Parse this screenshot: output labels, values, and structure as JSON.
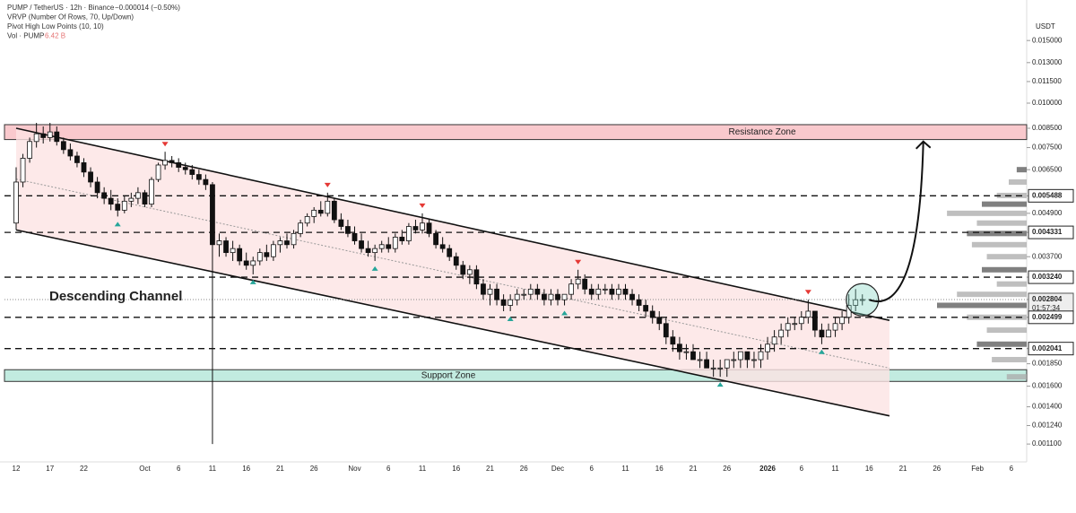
{
  "chart_data": {
    "type": "candlestick",
    "header": [
      "PUMP / TetherUS · 12h · Binance",
      "VRVP (Number Of Rows, 70, Up/Down)",
      "Pivot High Low Points (10, 10)",
      "Vol · PUMP"
    ],
    "change": "−0.000014 (−0.50%)",
    "volume_total": "6.42 B",
    "y_axis_unit": "USDT",
    "annotation": "Descending Channel",
    "log_scale": true,
    "ylim": [
      0.00098,
      0.0195
    ],
    "yticks": [
      {
        "value": 0.015,
        "label": "0.015000"
      },
      {
        "value": 0.013,
        "label": "0.013000"
      },
      {
        "value": 0.0115,
        "label": "0.011500"
      },
      {
        "value": 0.01,
        "label": "0.010000"
      },
      {
        "value": 0.0085,
        "label": "0.008500"
      },
      {
        "value": 0.0075,
        "label": "0.007500"
      },
      {
        "value": 0.0065,
        "label": "0.006500"
      },
      {
        "value": 0.005488,
        "label": "0.005488",
        "level": true
      },
      {
        "value": 0.0049,
        "label": "0.004900"
      },
      {
        "value": 0.004331,
        "label": "0.004331",
        "level": true
      },
      {
        "value": 0.0037,
        "label": "0.003700"
      },
      {
        "value": 0.00324,
        "label": "0.003240",
        "level": true
      },
      {
        "value": 0.002804,
        "label": "0.002804",
        "current": true
      },
      {
        "value": 0.002499,
        "label": "0.002499",
        "level": true
      },
      {
        "value": 0.002041,
        "label": "0.002041",
        "level": true
      },
      {
        "value": 0.00185,
        "label": "0.001850"
      },
      {
        "value": 0.0016,
        "label": "0.001600"
      },
      {
        "value": 0.0014,
        "label": "0.001400"
      },
      {
        "value": 0.00124,
        "label": "0.001240"
      },
      {
        "value": 0.0011,
        "label": "0.001100"
      }
    ],
    "countdown": "01:57:34",
    "categories": [
      "12",
      null,
      null,
      null,
      null,
      "17",
      null,
      null,
      null,
      null,
      "22",
      null,
      null,
      null,
      null,
      null,
      null,
      null,
      null,
      "Oct",
      null,
      null,
      null,
      null,
      "6",
      null,
      null,
      null,
      null,
      "11",
      null,
      null,
      null,
      null,
      "16",
      null,
      null,
      null,
      null,
      "21",
      null,
      null,
      null,
      null,
      "26",
      null,
      null,
      null,
      null,
      null,
      "Nov",
      null,
      null,
      null,
      null,
      "6",
      null,
      null,
      null,
      null,
      "11",
      null,
      null,
      null,
      null,
      "16",
      null,
      null,
      null,
      null,
      "21",
      null,
      null,
      null,
      null,
      "26",
      null,
      null,
      null,
      null,
      "Dec",
      null,
      null,
      null,
      null,
      "6",
      null,
      null,
      null,
      null,
      "11",
      null,
      null,
      null,
      null,
      "16",
      null,
      null,
      null,
      null,
      "21",
      null,
      null,
      null,
      null,
      "26",
      null,
      null,
      null,
      null,
      null,
      "2026",
      null,
      null,
      null,
      null,
      "6",
      null,
      null,
      null,
      null,
      "11",
      null,
      null,
      null,
      null,
      "16",
      null,
      null,
      null,
      null,
      "21",
      null,
      null,
      null,
      null,
      "26",
      null,
      null,
      null,
      null,
      null,
      "Feb",
      null,
      null,
      null,
      null,
      "6",
      null,
      null
    ],
    "ohlc": [
      [
        0.0046,
        0.0066,
        0.0044,
        0.006
      ],
      [
        0.006,
        0.0072,
        0.0058,
        0.007
      ],
      [
        0.007,
        0.008,
        0.0068,
        0.0078
      ],
      [
        0.0078,
        0.0088,
        0.0075,
        0.0082
      ],
      [
        0.0082,
        0.0086,
        0.0077,
        0.008
      ],
      [
        0.008,
        0.0088,
        0.0078,
        0.0083
      ],
      [
        0.0083,
        0.0086,
        0.0076,
        0.0078
      ],
      [
        0.0078,
        0.008,
        0.0072,
        0.0074
      ],
      [
        0.0074,
        0.0077,
        0.0069,
        0.0071
      ],
      [
        0.0071,
        0.0073,
        0.0066,
        0.0068
      ],
      [
        0.0068,
        0.007,
        0.0062,
        0.0064
      ],
      [
        0.0064,
        0.0066,
        0.0058,
        0.006
      ],
      [
        0.006,
        0.0062,
        0.0054,
        0.0056
      ],
      [
        0.0056,
        0.0058,
        0.0052,
        0.0054
      ],
      [
        0.0054,
        0.0057,
        0.005,
        0.0052
      ],
      [
        0.0052,
        0.0054,
        0.0048,
        0.005
      ],
      [
        0.005,
        0.0055,
        0.0049,
        0.0053
      ],
      [
        0.0053,
        0.0056,
        0.0051,
        0.0054
      ],
      [
        0.0054,
        0.0058,
        0.0052,
        0.0056
      ],
      [
        0.0056,
        0.0057,
        0.0051,
        0.0052
      ],
      [
        0.0052,
        0.0062,
        0.0051,
        0.0061
      ],
      [
        0.0061,
        0.0068,
        0.006,
        0.0067
      ],
      [
        0.0067,
        0.0073,
        0.0065,
        0.0069
      ],
      [
        0.0069,
        0.0071,
        0.0066,
        0.0068
      ],
      [
        0.0068,
        0.007,
        0.0064,
        0.0066
      ],
      [
        0.0066,
        0.0068,
        0.0063,
        0.0065
      ],
      [
        0.0065,
        0.0067,
        0.0061,
        0.0063
      ],
      [
        0.0063,
        0.0065,
        0.0059,
        0.0061
      ],
      [
        0.0061,
        0.0063,
        0.0057,
        0.0059
      ],
      [
        0.0059,
        0.006,
        0.0011,
        0.004
      ],
      [
        0.004,
        0.0043,
        0.0037,
        0.0041
      ],
      [
        0.0041,
        0.0042,
        0.0037,
        0.0038
      ],
      [
        0.0038,
        0.0041,
        0.0036,
        0.0039
      ],
      [
        0.0039,
        0.004,
        0.0035,
        0.0036
      ],
      [
        0.0036,
        0.0038,
        0.0034,
        0.0035
      ],
      [
        0.0035,
        0.0037,
        0.0033,
        0.0036
      ],
      [
        0.0036,
        0.0039,
        0.0035,
        0.0038
      ],
      [
        0.0038,
        0.004,
        0.0036,
        0.0037
      ],
      [
        0.0037,
        0.0041,
        0.0036,
        0.004
      ],
      [
        0.004,
        0.0042,
        0.0038,
        0.0041
      ],
      [
        0.0041,
        0.0043,
        0.0039,
        0.004
      ],
      [
        0.004,
        0.0044,
        0.0039,
        0.0043
      ],
      [
        0.0043,
        0.0047,
        0.0042,
        0.0046
      ],
      [
        0.0046,
        0.0049,
        0.0045,
        0.0048
      ],
      [
        0.0048,
        0.0051,
        0.0046,
        0.005
      ],
      [
        0.005,
        0.0053,
        0.0048,
        0.0049
      ],
      [
        0.0049,
        0.0056,
        0.0048,
        0.0053
      ],
      [
        0.0053,
        0.0054,
        0.0046,
        0.0047
      ],
      [
        0.0047,
        0.0049,
        0.0044,
        0.0045
      ],
      [
        0.0045,
        0.0047,
        0.0042,
        0.0043
      ],
      [
        0.0043,
        0.0045,
        0.004,
        0.0041
      ],
      [
        0.0041,
        0.0043,
        0.0038,
        0.0039
      ],
      [
        0.0039,
        0.0041,
        0.0037,
        0.0038
      ],
      [
        0.0038,
        0.004,
        0.0036,
        0.0039
      ],
      [
        0.0039,
        0.0041,
        0.0038,
        0.004
      ],
      [
        0.004,
        0.0042,
        0.0038,
        0.0039
      ],
      [
        0.0039,
        0.0043,
        0.0038,
        0.0042
      ],
      [
        0.0042,
        0.0044,
        0.004,
        0.0041
      ],
      [
        0.0041,
        0.0046,
        0.004,
        0.0045
      ],
      [
        0.0045,
        0.0047,
        0.0043,
        0.0044
      ],
      [
        0.0044,
        0.0049,
        0.0043,
        0.0046
      ],
      [
        0.0046,
        0.0047,
        0.0042,
        0.0043
      ],
      [
        0.0043,
        0.0044,
        0.0039,
        0.004
      ],
      [
        0.004,
        0.0042,
        0.0038,
        0.0039
      ],
      [
        0.0039,
        0.004,
        0.0036,
        0.0037
      ],
      [
        0.0037,
        0.0038,
        0.0034,
        0.0035
      ],
      [
        0.0035,
        0.0036,
        0.0032,
        0.0033
      ],
      [
        0.0033,
        0.0035,
        0.0031,
        0.0034
      ],
      [
        0.0034,
        0.0035,
        0.003,
        0.0031
      ],
      [
        0.0031,
        0.0032,
        0.0028,
        0.0029
      ],
      [
        0.0029,
        0.0031,
        0.0027,
        0.003
      ],
      [
        0.003,
        0.0031,
        0.0027,
        0.0028
      ],
      [
        0.0028,
        0.0029,
        0.0026,
        0.0027
      ],
      [
        0.0027,
        0.0029,
        0.0026,
        0.0028
      ],
      [
        0.0028,
        0.003,
        0.0027,
        0.0029
      ],
      [
        0.0029,
        0.003,
        0.0028,
        0.0029
      ],
      [
        0.0029,
        0.0031,
        0.0028,
        0.003
      ],
      [
        0.003,
        0.0031,
        0.0028,
        0.0029
      ],
      [
        0.0029,
        0.003,
        0.0027,
        0.0028
      ],
      [
        0.0028,
        0.003,
        0.0027,
        0.0029
      ],
      [
        0.0029,
        0.003,
        0.0027,
        0.0028
      ],
      [
        0.0028,
        0.0029,
        0.0027,
        0.0029
      ],
      [
        0.0029,
        0.0032,
        0.0028,
        0.0031
      ],
      [
        0.0031,
        0.0034,
        0.003,
        0.0032
      ],
      [
        0.0032,
        0.0033,
        0.0029,
        0.003
      ],
      [
        0.003,
        0.0031,
        0.0028,
        0.0029
      ],
      [
        0.0029,
        0.0031,
        0.0028,
        0.003
      ],
      [
        0.003,
        0.0031,
        0.0029,
        0.003
      ],
      [
        0.003,
        0.0031,
        0.0028,
        0.0029
      ],
      [
        0.0029,
        0.0031,
        0.0028,
        0.003
      ],
      [
        0.003,
        0.0031,
        0.0028,
        0.0029
      ],
      [
        0.0029,
        0.003,
        0.0027,
        0.0028
      ],
      [
        0.0028,
        0.0029,
        0.0026,
        0.0027
      ],
      [
        0.0027,
        0.0028,
        0.0025,
        0.0026
      ],
      [
        0.0026,
        0.0027,
        0.0024,
        0.0025
      ],
      [
        0.0025,
        0.0026,
        0.0023,
        0.0024
      ],
      [
        0.0024,
        0.0025,
        0.0021,
        0.0022
      ],
      [
        0.0022,
        0.0023,
        0.002,
        0.0021
      ],
      [
        0.0021,
        0.0022,
        0.0019,
        0.002
      ],
      [
        0.002,
        0.0021,
        0.0019,
        0.002
      ],
      [
        0.002,
        0.0021,
        0.0019,
        0.0019
      ],
      [
        0.0019,
        0.002,
        0.0018,
        0.0019
      ],
      [
        0.0019,
        0.002,
        0.0018,
        0.0018
      ],
      [
        0.0018,
        0.0019,
        0.0017,
        0.0018
      ],
      [
        0.0018,
        0.0019,
        0.0017,
        0.0018
      ],
      [
        0.0018,
        0.0019,
        0.0017,
        0.0019
      ],
      [
        0.0019,
        0.002,
        0.0018,
        0.0019
      ],
      [
        0.0019,
        0.002,
        0.0018,
        0.002
      ],
      [
        0.002,
        0.002,
        0.0018,
        0.0019
      ],
      [
        0.0019,
        0.002,
        0.0018,
        0.0019
      ],
      [
        0.0019,
        0.0021,
        0.0018,
        0.002
      ],
      [
        0.002,
        0.0022,
        0.0019,
        0.0021
      ],
      [
        0.0021,
        0.0023,
        0.002,
        0.0022
      ],
      [
        0.0022,
        0.0024,
        0.0021,
        0.0023
      ],
      [
        0.0023,
        0.0025,
        0.0022,
        0.0024
      ],
      [
        0.0024,
        0.0025,
        0.0023,
        0.0024
      ],
      [
        0.0024,
        0.0026,
        0.0023,
        0.0025
      ],
      [
        0.0025,
        0.0028,
        0.0024,
        0.0026
      ],
      [
        0.0026,
        0.0026,
        0.0022,
        0.0023
      ],
      [
        0.0023,
        0.0024,
        0.0021,
        0.0022
      ],
      [
        0.0022,
        0.0024,
        0.0022,
        0.0023
      ],
      [
        0.0023,
        0.0025,
        0.0022,
        0.0024
      ],
      [
        0.0024,
        0.0026,
        0.0023,
        0.0025
      ],
      [
        0.0025,
        0.0029,
        0.0024,
        0.0027
      ],
      [
        0.0027,
        0.003,
        0.0026,
        0.0028
      ],
      [
        0.0028,
        0.0029,
        0.0027,
        0.002804
      ],
      null,
      null,
      null,
      null,
      null,
      null,
      null,
      null,
      null,
      null,
      null,
      null,
      null,
      null,
      null,
      null,
      null,
      null,
      null,
      null,
      null,
      null,
      null,
      null
    ],
    "up_color": "#ffffff",
    "down_color": "#111111",
    "pivot_highs": [
      22,
      46,
      60,
      83,
      117
    ],
    "pivot_lows": [
      15,
      35,
      53,
      73,
      81,
      104,
      119
    ],
    "zones": [
      {
        "label": "Resistance Zone",
        "range": [
          0.0079,
          0.0087
        ],
        "color": "#f9c9cd"
      },
      {
        "label": "Support Zone",
        "range": [
          0.00165,
          0.00178
        ],
        "color": "#c2ebe0"
      }
    ],
    "channel": {
      "upper": [
        [
          0,
          0.0085
        ],
        [
          129,
          0.00245
        ]
      ],
      "lower": [
        [
          0,
          0.0044
        ],
        [
          129,
          0.00132
        ]
      ],
      "color": "#fde3e3"
    },
    "highlight": [
      125,
      0.0028
    ],
    "breakout_arrow": {
      "from": [
        126,
        0.0028
      ],
      "to": [
        134,
        0.0078
      ]
    },
    "volume_profile": {
      "prices": [
        0.0065,
        0.006,
        0.0055,
        0.0052,
        0.0049,
        0.0046,
        0.0043,
        0.004,
        0.0037,
        0.0034,
        0.0031,
        0.0029,
        0.0027,
        0.0025,
        0.0023,
        0.0021,
        0.0019,
        0.0017
      ],
      "volumes": [
        10,
        18,
        30,
        45,
        80,
        50,
        60,
        55,
        40,
        45,
        30,
        70,
        90,
        60,
        40,
        50,
        35,
        20
      ]
    }
  }
}
